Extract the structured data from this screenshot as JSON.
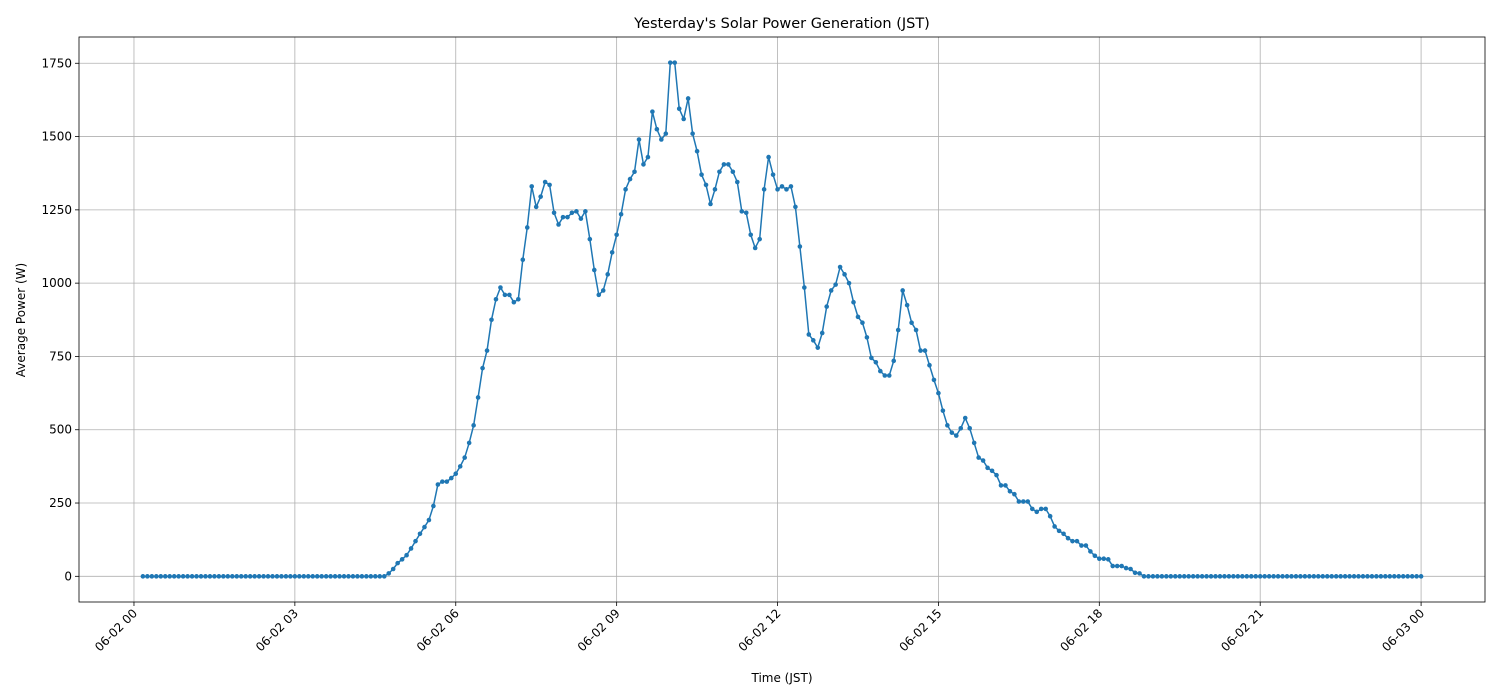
{
  "chart_data": {
    "type": "line",
    "title": "Yesterday's Solar Power Generation (JST)",
    "xlabel": "Time (JST)",
    "ylabel": "Average Power (W)",
    "color": "#1f77b4",
    "markers": true,
    "grid": true,
    "x": [
      10,
      15,
      20,
      25,
      30,
      35,
      40,
      45,
      50,
      55,
      60,
      65,
      70,
      75,
      80,
      85,
      90,
      95,
      100,
      105,
      110,
      115,
      120,
      125,
      130,
      135,
      140,
      145,
      150,
      155,
      160,
      165,
      170,
      175,
      180,
      185,
      190,
      195,
      200,
      205,
      210,
      215,
      220,
      225,
      230,
      235,
      240,
      245,
      250,
      255,
      260,
      265,
      270,
      275,
      280,
      285,
      290,
      295,
      300,
      305,
      310,
      315,
      320,
      325,
      330,
      335,
      340,
      345,
      350,
      355,
      360,
      365,
      370,
      375,
      380,
      385,
      390,
      395,
      400,
      405,
      410,
      415,
      420,
      425,
      430,
      435,
      440,
      445,
      450,
      455,
      460,
      465,
      470,
      475,
      480,
      485,
      490,
      495,
      500,
      505,
      510,
      515,
      520,
      525,
      530,
      535,
      540,
      545,
      550,
      555,
      560,
      565,
      570,
      575,
      580,
      585,
      590,
      595,
      600,
      605,
      610,
      615,
      620,
      625,
      630,
      635,
      640,
      645,
      650,
      655,
      660,
      665,
      670,
      675,
      680,
      685,
      690,
      695,
      700,
      705,
      710,
      715,
      720,
      725,
      730,
      735,
      740,
      745,
      750,
      755,
      760,
      765,
      770,
      775,
      780,
      785,
      790,
      795,
      800,
      805,
      810,
      815,
      820,
      825,
      830,
      835,
      840,
      845,
      850,
      855,
      860,
      865,
      870,
      875,
      880,
      885,
      890,
      895,
      900,
      905,
      910,
      915,
      920,
      925,
      930,
      935,
      940,
      945,
      950,
      955,
      960,
      965,
      970,
      975,
      980,
      985,
      990,
      995,
      1000,
      1005,
      1010,
      1015,
      1020,
      1025,
      1030,
      1035,
      1040,
      1045,
      1050,
      1055,
      1060,
      1065,
      1070,
      1075,
      1080,
      1085,
      1090,
      1095,
      1100,
      1105,
      1110,
      1115,
      1120,
      1125,
      1130,
      1135,
      1140,
      1145,
      1150,
      1155,
      1160,
      1165,
      1170,
      1175,
      1180,
      1185,
      1190,
      1195,
      1200,
      1205,
      1210,
      1215,
      1220,
      1225,
      1230,
      1235,
      1240,
      1245,
      1250,
      1255,
      1260,
      1265,
      1270,
      1275,
      1280,
      1285,
      1290,
      1295,
      1300,
      1305,
      1310,
      1315,
      1320,
      1325,
      1330,
      1335,
      1340,
      1345,
      1350,
      1355,
      1360,
      1365,
      1370,
      1375,
      1380,
      1385,
      1390,
      1395,
      1400,
      1405,
      1410,
      1415,
      1420,
      1425,
      1430,
      1435,
      1440
    ],
    "values": [
      0,
      0,
      0,
      0,
      0,
      0,
      0,
      0,
      0,
      0,
      0,
      0,
      0,
      0,
      0,
      0,
      0,
      0,
      0,
      0,
      0,
      0,
      0,
      0,
      0,
      0,
      0,
      0,
      0,
      0,
      0,
      0,
      0,
      0,
      0,
      0,
      0,
      0,
      0,
      0,
      0,
      0,
      0,
      0,
      0,
      0,
      0,
      0,
      0,
      0,
      0,
      0,
      0,
      0,
      0,
      10,
      25,
      45,
      58,
      72,
      95,
      120,
      145,
      168,
      192,
      240,
      313,
      323,
      323,
      335,
      350,
      375,
      405,
      455,
      515,
      610,
      710,
      770,
      875,
      945,
      985,
      960,
      960,
      935,
      945,
      1080,
      1190,
      1330,
      1260,
      1295,
      1345,
      1335,
      1240,
      1200,
      1225,
      1225,
      1240,
      1245,
      1220,
      1245,
      1150,
      1045,
      960,
      975,
      1030,
      1105,
      1165,
      1235,
      1320,
      1355,
      1380,
      1490,
      1405,
      1430,
      1585,
      1525,
      1490,
      1510,
      1752,
      1752,
      1595,
      1560,
      1630,
      1510,
      1450,
      1370,
      1335,
      1270,
      1320,
      1380,
      1405,
      1405,
      1380,
      1345,
      1245,
      1240,
      1165,
      1120,
      1150,
      1320,
      1430,
      1370,
      1320,
      1330,
      1320,
      1330,
      1260,
      1125,
      985,
      825,
      805,
      780,
      830,
      920,
      975,
      995,
      1055,
      1030,
      1000,
      935,
      885,
      865,
      815,
      745,
      730,
      700,
      685,
      685,
      735,
      840,
      975,
      925,
      865,
      840,
      770,
      770,
      720,
      670,
      625,
      565,
      515,
      490,
      480,
      505,
      540,
      505,
      455,
      405,
      395,
      370,
      360,
      345,
      310,
      310,
      290,
      280,
      255,
      255,
      255,
      230,
      220,
      230,
      230,
      205,
      170,
      155,
      145,
      130,
      120,
      120,
      105,
      105,
      85,
      70,
      60,
      60,
      58,
      35,
      35,
      35,
      28,
      25,
      12,
      10,
      0,
      0,
      0,
      0,
      0,
      0,
      0,
      0,
      0,
      0,
      0,
      0,
      0,
      0,
      0,
      0,
      0,
      0,
      0,
      0,
      0,
      0,
      0,
      0,
      0,
      0,
      0,
      0,
      0,
      0,
      0,
      0,
      0,
      0,
      0,
      0,
      0,
      0,
      0,
      0,
      0,
      0,
      0,
      0,
      0,
      0,
      0,
      0,
      0,
      0,
      0,
      0,
      0,
      0,
      0,
      0,
      0,
      0,
      0,
      0,
      0,
      0,
      0
    ],
    "xlim": [
      -61.5,
      1511.5
    ],
    "ylim": [
      -87.6,
      1839.6
    ],
    "xticks": [
      {
        "value": 0,
        "label": "06-02 00"
      },
      {
        "value": 180,
        "label": "06-02 03"
      },
      {
        "value": 360,
        "label": "06-02 06"
      },
      {
        "value": 540,
        "label": "06-02 09"
      },
      {
        "value": 720,
        "label": "06-02 12"
      },
      {
        "value": 900,
        "label": "06-02 15"
      },
      {
        "value": 1080,
        "label": "06-02 18"
      },
      {
        "value": 1260,
        "label": "06-02 21"
      },
      {
        "value": 1440,
        "label": "06-03 00"
      }
    ],
    "yticks": [
      0,
      250,
      500,
      750,
      1000,
      1250,
      1500,
      1750
    ]
  }
}
